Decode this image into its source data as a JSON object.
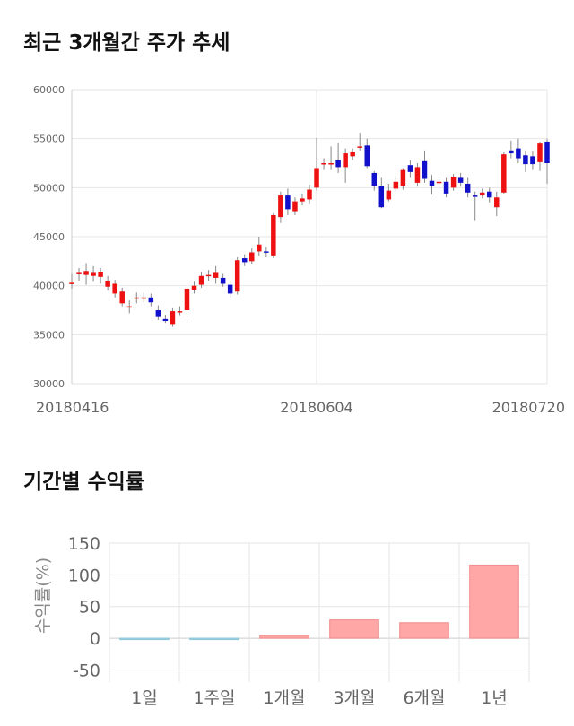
{
  "titles": {
    "price_trend": "최근 3개월간 주가 추세",
    "returns": "기간별 수익률"
  },
  "colors": {
    "up": "#ee1111",
    "down": "#1111cc",
    "positive_bar": "#ffa6a6",
    "negative_bar": "#a8d8e8"
  },
  "chart_data": [
    {
      "type": "candlestick",
      "title": "최근 3개월간 주가 추세",
      "ylim": [
        30000,
        60000
      ],
      "yticks": [
        30000,
        35000,
        40000,
        45000,
        50000,
        55000,
        60000
      ],
      "xtick_labels": [
        "20180416",
        "20180604",
        "20180720"
      ],
      "xtick_index": [
        0,
        34,
        66
      ],
      "grid": true,
      "candles": [
        [
          40300,
          40300,
          41200,
          39700
        ],
        [
          41250,
          41300,
          41800,
          40500
        ],
        [
          41100,
          41500,
          42300,
          40100
        ],
        [
          41000,
          41300,
          42000,
          40400
        ],
        [
          40900,
          41400,
          41800,
          40200
        ],
        [
          39900,
          40500,
          41000,
          39500
        ],
        [
          39200,
          40200,
          40600,
          38800
        ],
        [
          38200,
          39400,
          39800,
          37900
        ],
        [
          37800,
          37900,
          38500,
          37200
        ],
        [
          38700,
          38800,
          39300,
          38200
        ],
        [
          38800,
          38800,
          39300,
          38300
        ],
        [
          38800,
          38300,
          39200,
          37900
        ],
        [
          37500,
          36800,
          38000,
          36500
        ],
        [
          36600,
          36400,
          37000,
          36200
        ],
        [
          36000,
          37400,
          37700,
          35800
        ],
        [
          37300,
          37400,
          37900,
          36900
        ],
        [
          37500,
          39700,
          40000,
          36700
        ],
        [
          39600,
          40000,
          40400,
          39200
        ],
        [
          40100,
          41000,
          41400,
          39800
        ],
        [
          41000,
          41100,
          41600,
          40500
        ],
        [
          40800,
          41300,
          42000,
          40200
        ],
        [
          40800,
          40200,
          41200,
          39900
        ],
        [
          40100,
          39200,
          40500,
          38800
        ],
        [
          39400,
          42600,
          42900,
          39100
        ],
        [
          42800,
          42400,
          43200,
          42000
        ],
        [
          42500,
          43400,
          43800,
          42200
        ],
        [
          43500,
          44200,
          45000,
          43000
        ],
        [
          43500,
          43400,
          43900,
          42900
        ],
        [
          43000,
          47200,
          47400,
          42800
        ],
        [
          47000,
          49200,
          49600,
          46400
        ],
        [
          49200,
          47800,
          49900,
          47200
        ],
        [
          47600,
          48600,
          49000,
          47200
        ],
        [
          48600,
          48900,
          49300,
          48200
        ],
        [
          48800,
          49800,
          50300,
          48300
        ],
        [
          50000,
          52000,
          55100,
          49700
        ],
        [
          52400,
          52500,
          53000,
          51800
        ],
        [
          52500,
          52500,
          54200,
          51800
        ],
        [
          52800,
          52100,
          54600,
          51500
        ],
        [
          52100,
          53500,
          54000,
          50500
        ],
        [
          53200,
          53600,
          54000,
          52800
        ],
        [
          54100,
          54200,
          55600,
          53800
        ],
        [
          54300,
          52200,
          55000,
          52000
        ],
        [
          51500,
          50200,
          51700,
          49700
        ],
        [
          50200,
          48000,
          51000,
          47900
        ],
        [
          48800,
          49700,
          50400,
          48600
        ],
        [
          49900,
          50600,
          51200,
          49600
        ],
        [
          50200,
          51800,
          52000,
          49800
        ],
        [
          52300,
          51600,
          52800,
          51000
        ],
        [
          50500,
          52100,
          52500,
          50100
        ],
        [
          52700,
          50900,
          53800,
          50500
        ],
        [
          50700,
          50200,
          51300,
          49300
        ],
        [
          50500,
          50600,
          51100,
          49800
        ],
        [
          50600,
          49400,
          51000,
          49000
        ],
        [
          50000,
          51100,
          51400,
          49700
        ],
        [
          51000,
          50500,
          51500,
          50100
        ],
        [
          50400,
          49500,
          51000,
          49000
        ],
        [
          49200,
          49100,
          49600,
          46600
        ],
        [
          49200,
          49500,
          49900,
          48900
        ],
        [
          49600,
          49000,
          50000,
          48500
        ],
        [
          48000,
          49000,
          49600,
          47100
        ],
        [
          49500,
          53400,
          53600,
          49400
        ],
        [
          53800,
          53500,
          54800,
          53000
        ],
        [
          54000,
          53000,
          55000,
          52500
        ],
        [
          53300,
          52400,
          53800,
          51600
        ],
        [
          53200,
          52400,
          53700,
          51800
        ],
        [
          52600,
          54500,
          54700,
          51700
        ],
        [
          54700,
          52500,
          55000,
          50400
        ]
      ]
    },
    {
      "type": "bar",
      "title": "기간별 수익률",
      "ylabel": "수익률(%)",
      "ylim": [
        -55,
        150
      ],
      "yticks": [
        -50,
        0,
        50,
        100,
        150
      ],
      "categories": [
        "1일",
        "1주일",
        "1개월",
        "3개월",
        "6개월",
        "1년"
      ],
      "values": [
        -1.5,
        -1.0,
        4.5,
        29.0,
        24.5,
        115.5
      ],
      "grid": true
    }
  ]
}
